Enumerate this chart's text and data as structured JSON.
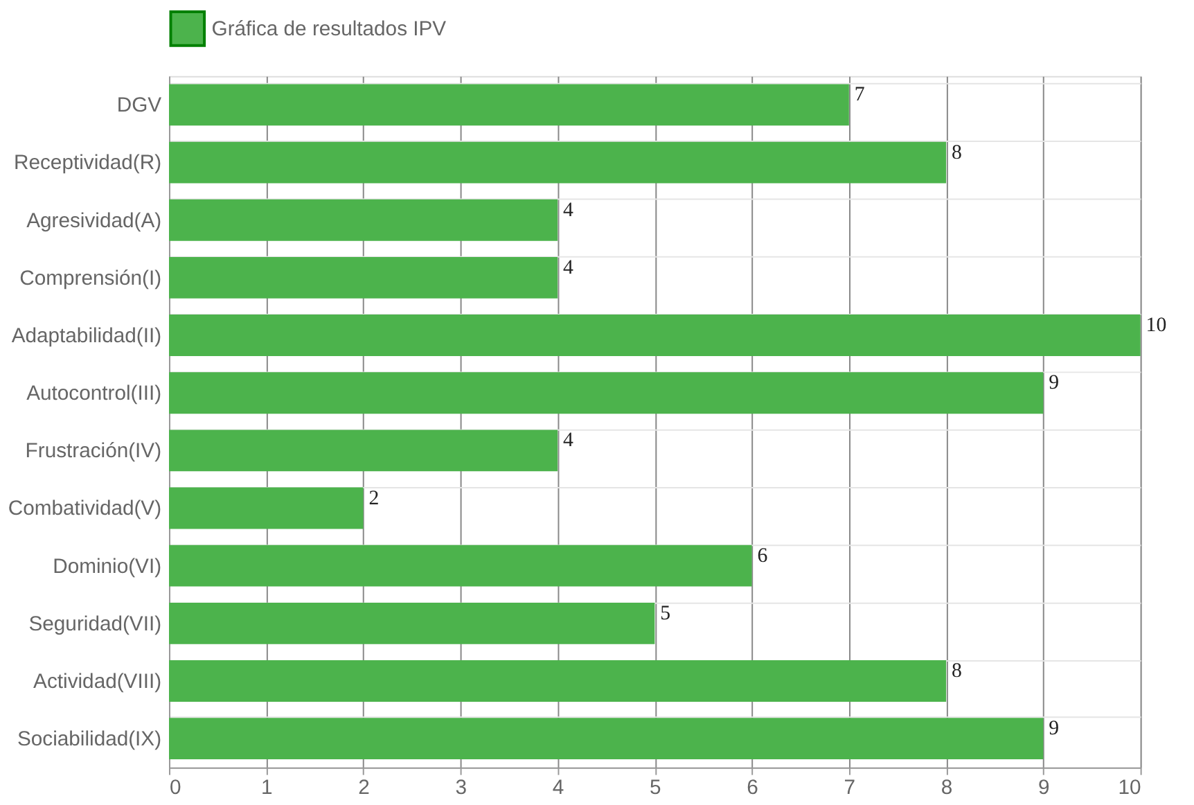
{
  "chart_data": {
    "type": "bar",
    "orientation": "horizontal",
    "categories": [
      "DGV",
      "Receptividad(R)",
      "Agresividad(A)",
      "Comprensión(I)",
      "Adaptabilidad(II)",
      "Autocontrol(III)",
      "Frustración(IV)",
      "Combatividad(V)",
      "Dominio(VI)",
      "Seguridad(VII)",
      "Actividad(VIII)",
      "Sociabilidad(IX)"
    ],
    "series": [
      {
        "name": "Gráfica de resultados IPV",
        "color": "#4cb34c",
        "values": [
          7,
          8,
          4,
          4,
          10,
          9,
          4,
          2,
          6,
          5,
          8,
          9
        ]
      }
    ],
    "xlim": [
      0,
      10
    ],
    "xticks": [
      0,
      1,
      2,
      3,
      4,
      5,
      6,
      7,
      8,
      9,
      10
    ],
    "grid": true,
    "legend": "top",
    "data_labels": true
  }
}
